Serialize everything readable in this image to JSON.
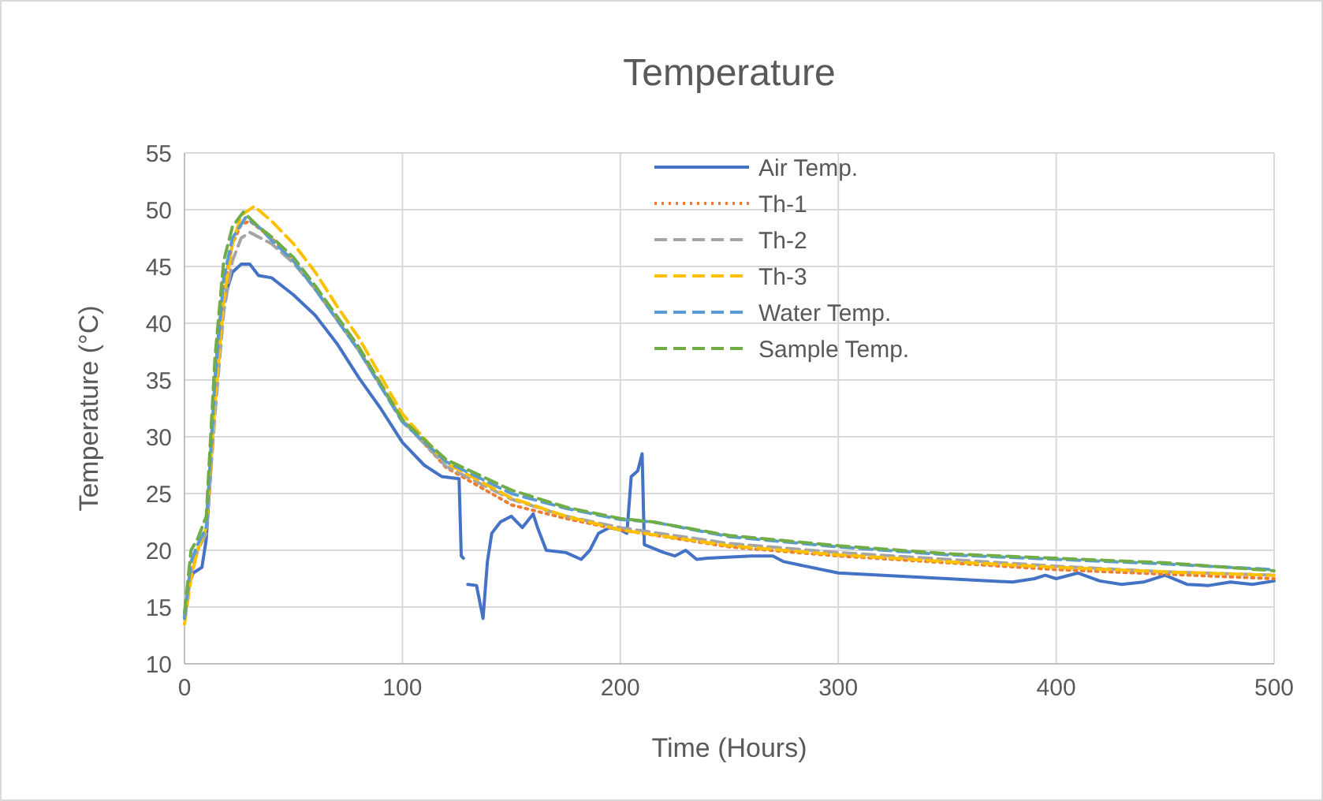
{
  "chart_data": {
    "type": "line",
    "title": "Temperature",
    "xlabel": "Time  (Hours)",
    "ylabel": "Temperature (°C)",
    "xlim": [
      0,
      500
    ],
    "xticks": [
      0,
      100,
      200,
      300,
      400,
      500
    ],
    "ylim": [
      10,
      55
    ],
    "yticks": [
      10,
      15,
      20,
      25,
      30,
      35,
      40,
      45,
      50,
      55
    ],
    "grid": true,
    "legend": "top right",
    "series": [
      {
        "name": "Air Temp.",
        "color": "#4472c4",
        "line_style": "solid",
        "x": [
          0,
          2,
          4,
          8,
          10,
          12,
          14,
          16,
          18,
          22,
          26,
          30,
          34,
          40,
          50,
          60,
          70,
          80,
          90,
          100,
          110,
          118,
          126,
          127,
          128,
          129,
          130,
          134,
          137,
          139,
          141,
          145,
          150,
          155,
          160,
          162,
          166,
          175,
          182,
          186,
          190,
          195,
          200,
          203,
          205,
          208,
          210,
          211,
          220,
          225,
          230,
          235,
          240,
          260,
          270,
          275,
          300,
          350,
          380,
          390,
          395,
          400,
          410,
          420,
          430,
          440,
          450,
          460,
          470,
          480,
          490,
          500
        ],
        "values": [
          14,
          17,
          18,
          18.5,
          21,
          27,
          35,
          40,
          42,
          44.5,
          45.2,
          45.2,
          44.2,
          44,
          42.5,
          40.7,
          38.2,
          35.2,
          32.5,
          29.5,
          27.5,
          26.5,
          26.3,
          19.5,
          19.3,
          null,
          17,
          16.9,
          14,
          19,
          21.5,
          22.5,
          23,
          22,
          23.2,
          22,
          20,
          19.8,
          19.2,
          20,
          21.5,
          22,
          21.8,
          21.5,
          26.5,
          27,
          28.5,
          20.5,
          19.8,
          19.5,
          20,
          19.2,
          19.3,
          19.5,
          19.5,
          19,
          18,
          17.5,
          17.2,
          17.5,
          17.8,
          17.5,
          18,
          17.3,
          17,
          17.2,
          17.8,
          17,
          16.9,
          17.2,
          17,
          17.3
        ]
      },
      {
        "name": "Th-1",
        "color": "#ed7d31",
        "line_style": "dotted",
        "x": [
          0,
          3,
          6,
          10,
          14,
          18,
          22,
          26,
          30,
          40,
          50,
          60,
          70,
          80,
          100,
          120,
          150,
          175,
          200,
          250,
          300,
          350,
          400,
          450,
          500
        ],
        "values": [
          14,
          18,
          20,
          22,
          34,
          43,
          47,
          48.7,
          49,
          47.5,
          45.5,
          43,
          40.3,
          37.6,
          31.5,
          27.3,
          24,
          22.8,
          21.8,
          20.3,
          19.5,
          18.9,
          18.3,
          17.9,
          17.5
        ]
      },
      {
        "name": "Th-2",
        "color": "#a5a5a5",
        "line_style": "dashed",
        "x": [
          0,
          3,
          6,
          10,
          14,
          18,
          22,
          26,
          30,
          40,
          50,
          60,
          70,
          80,
          100,
          120,
          150,
          175,
          200,
          250,
          300,
          350,
          400,
          450,
          500
        ],
        "values": [
          14,
          18,
          20,
          21.5,
          32,
          41,
          45.5,
          47.5,
          48,
          47,
          45.3,
          43,
          40.3,
          37.6,
          31.4,
          27.4,
          24.5,
          23,
          22,
          20.6,
          19.8,
          19.2,
          18.6,
          18.1,
          17.8
        ]
      },
      {
        "name": "Th-3",
        "color": "#ffc000",
        "line_style": "dashed",
        "x": [
          0,
          3,
          6,
          10,
          14,
          18,
          22,
          26,
          32,
          40,
          50,
          60,
          70,
          80,
          100,
          120,
          150,
          175,
          200,
          250,
          300,
          350,
          400,
          450,
          500
        ],
        "values": [
          13.5,
          17.5,
          20,
          22,
          33,
          42,
          47,
          49.5,
          50.3,
          49,
          47,
          44.5,
          41.5,
          38.7,
          32,
          27.7,
          24.6,
          23,
          21.8,
          20.4,
          19.6,
          19,
          18.5,
          18.1,
          17.8
        ]
      },
      {
        "name": "Water Temp.",
        "color": "#5b9bd5",
        "line_style": "dashed",
        "x": [
          0,
          3,
          6,
          10,
          14,
          18,
          22,
          28,
          34,
          40,
          50,
          60,
          70,
          80,
          100,
          120,
          150,
          175,
          200,
          215,
          250,
          300,
          350,
          400,
          450,
          500
        ],
        "values": [
          14,
          19,
          20.5,
          22,
          35,
          44,
          47.5,
          49.3,
          48.5,
          47.3,
          45.5,
          43,
          40.3,
          37.6,
          31.3,
          27.8,
          25,
          23.7,
          22.7,
          22.5,
          21.2,
          20.3,
          19.6,
          19.2,
          18.8,
          18.3
        ]
      },
      {
        "name": "Sample Temp.",
        "color": "#70ad47",
        "line_style": "dashed",
        "x": [
          0,
          3,
          6,
          10,
          14,
          18,
          22,
          27,
          34,
          40,
          50,
          60,
          70,
          80,
          100,
          120,
          150,
          175,
          200,
          215,
          250,
          300,
          350,
          400,
          450,
          500
        ],
        "values": [
          14.5,
          20,
          21,
          23,
          37,
          45.5,
          48.5,
          49.8,
          48.5,
          47.6,
          45.8,
          43.3,
          40.6,
          37.9,
          31.5,
          28,
          25.3,
          23.8,
          22.8,
          22.5,
          21.3,
          20.4,
          19.7,
          19.3,
          18.9,
          18.2
        ]
      }
    ]
  }
}
